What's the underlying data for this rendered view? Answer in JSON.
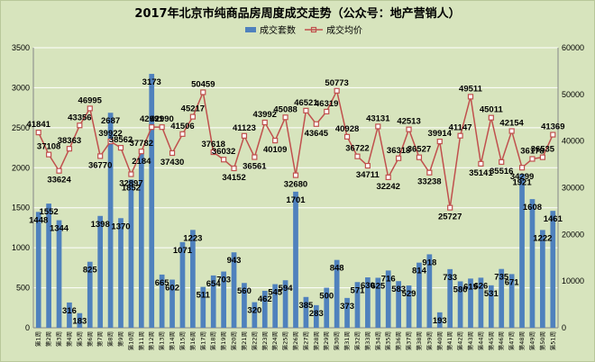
{
  "chart_data": {
    "type": "bar+line",
    "title": "2017年北京市纯商品房周度成交走势（公众号：地产营销人）",
    "legend": [
      "成交套数",
      "成交均价"
    ],
    "colors": {
      "bar": "#4f81bd",
      "line": "#c0504d",
      "plot_bg": "#d7e4bd",
      "grid": "#ffffff"
    },
    "categories": [
      "第1周",
      "第2周",
      "第3周",
      "第4周",
      "第5周",
      "第6周",
      "第7周",
      "第8周",
      "第9周",
      "第10周",
      "第11周",
      "第12周",
      "第13周",
      "第14周",
      "第15周",
      "第16周",
      "第17周",
      "第18周",
      "第19周",
      "第20周",
      "第21周",
      "第22周",
      "第23周",
      "第24周",
      "第25周",
      "第26周",
      "第27周",
      "第28周",
      "第29周",
      "第30周",
      "第31周",
      "第32周",
      "第33周",
      "第34周",
      "第35周",
      "第36周",
      "第37周",
      "第38周",
      "第39周",
      "第40周",
      "第41周",
      "第42周",
      "第43周",
      "第44周",
      "第45周",
      "第46周",
      "第47周",
      "第48周",
      "第49周",
      "第50周",
      "第51周"
    ],
    "series": [
      {
        "name": "成交套数",
        "axis": "left",
        "values": [
          1448,
          1552,
          1344,
          316,
          183,
          825,
          1398,
          2687,
          1370,
          1852,
          2184,
          3173,
          665,
          602,
          1071,
          1223,
          511,
          654,
          703,
          943,
          560,
          320,
          462,
          545,
          594,
          1701,
          385,
          283,
          500,
          848,
          373,
          571,
          630,
          625,
          716,
          583,
          529,
          814,
          918,
          193,
          733,
          580,
          615,
          626,
          531,
          735,
          671,
          1921,
          1608,
          1222,
          1461
        ]
      },
      {
        "name": "成交均价",
        "axis": "right",
        "values": [
          41841,
          37108,
          33624,
          38363,
          43356,
          46995,
          36770,
          39922,
          38562,
          32897,
          37782,
          42991,
          42990,
          37430,
          41506,
          45217,
          50459,
          37618,
          36032,
          34152,
          41123,
          36561,
          43992,
          40109,
          45088,
          32680,
          46521,
          43645,
          46319,
          50773,
          40928,
          36722,
          34711,
          43131,
          32242,
          36318,
          42513,
          36527,
          33238,
          39914,
          25727,
          41147,
          49511,
          35141,
          45011,
          35516,
          42154,
          34299,
          36178,
          36535,
          41369
        ]
      }
    ],
    "y_left": {
      "min": 0,
      "max": 3500,
      "step": 500,
      "ticks": [
        "0",
        "500",
        "1000",
        "1500",
        "2000",
        "2500",
        "3000",
        "3500"
      ]
    },
    "y_right": {
      "min": 0,
      "max": 60000,
      "step": 10000,
      "ticks": [
        "0",
        "10000",
        "20000",
        "30000",
        "40000",
        "50000",
        "60000"
      ]
    },
    "grid": true,
    "legend_position": "top-center"
  }
}
